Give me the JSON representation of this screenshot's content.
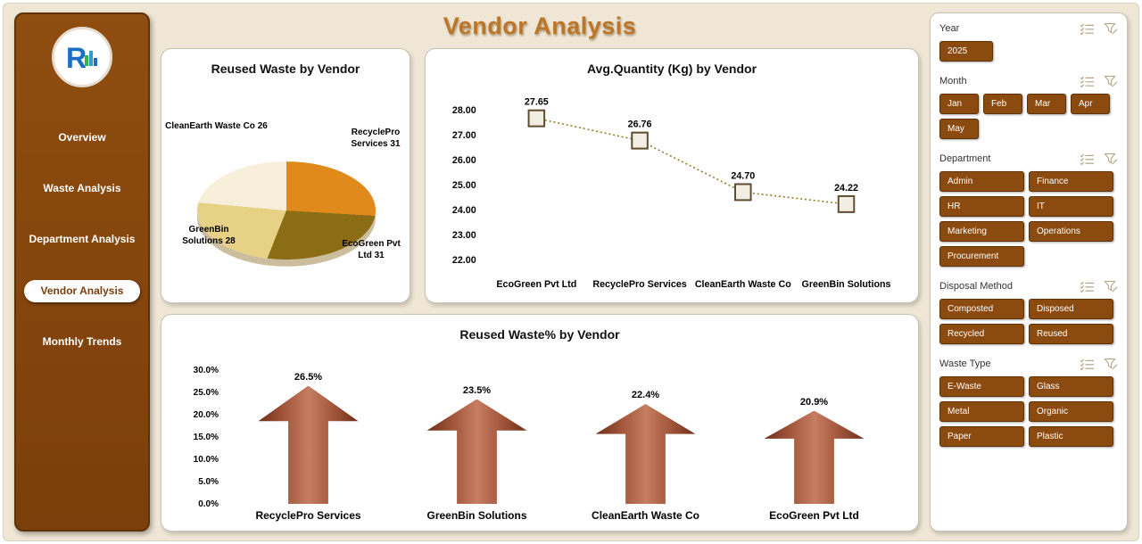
{
  "title": "Vendor Analysis",
  "sidebar": {
    "items": [
      {
        "label": "Overview",
        "active": false
      },
      {
        "label": "Waste Analysis",
        "active": false
      },
      {
        "label": "Department Analysis",
        "active": false
      },
      {
        "label": "Vendor Analysis",
        "active": true
      },
      {
        "label": "Monthly Trends",
        "active": false
      }
    ]
  },
  "colors": {
    "sidebar": "#8a4a10",
    "accent": "#8a4a10",
    "title": "#bd7628",
    "arrow": "#a0522d",
    "line": "#8d7b22",
    "pie_slices": [
      "#e08a1c",
      "#8a6d15",
      "#e6d184",
      "#f8efdb"
    ]
  },
  "chart_data": [
    {
      "type": "pie",
      "title": "Reused Waste by Vendor",
      "labels": [
        "RecyclePro Services",
        "EcoGreen Pvt Ltd",
        "GreenBin Solutions",
        "CleanEarth Waste Co"
      ],
      "values": [
        31,
        31,
        28,
        26
      ],
      "colors": [
        "#e08a1c",
        "#8a6d15",
        "#e6d184",
        "#f8efdb"
      ],
      "display_labels": [
        {
          "text": "CleanEarth Waste Co 26",
          "pos": "top-left"
        },
        {
          "text": "RecyclePro Services 31",
          "pos": "top-right"
        },
        {
          "text": "GreenBin Solutions 28",
          "pos": "bottom-left"
        },
        {
          "text": "EcoGreen Pvt Ltd 31",
          "pos": "bottom-right"
        }
      ]
    },
    {
      "type": "line",
      "title": "Avg.Quantity (Kg) by Vendor",
      "categories": [
        "EcoGreen Pvt Ltd",
        "RecyclePro Services",
        "CleanEarth Waste Co",
        "GreenBin Solutions"
      ],
      "values": [
        27.65,
        26.76,
        24.7,
        24.22
      ],
      "value_labels": [
        "27.65",
        "26.76",
        "24.70",
        "24.22"
      ],
      "ylim": [
        22,
        28
      ],
      "yticks": [
        28,
        27,
        26,
        25,
        24,
        23,
        22
      ],
      "line_style": "dotted",
      "legend": "none",
      "grid": false
    },
    {
      "type": "bar",
      "title": "Reused Waste% by Vendor",
      "categories": [
        "RecyclePro Services",
        "GreenBin Solutions",
        "CleanEarth Waste Co",
        "EcoGreen Pvt Ltd"
      ],
      "values": [
        26.5,
        23.5,
        22.4,
        20.9
      ],
      "value_labels": [
        "26.5%",
        "23.5%",
        "22.4%",
        "20.9%"
      ],
      "ylim": [
        0,
        30
      ],
      "yticks": [
        "30.0%",
        "25.0%",
        "20.0%",
        "15.0%",
        "10.0%",
        "5.0%",
        "0.0%"
      ],
      "bar_shape": "up-arrow"
    }
  ],
  "filters": {
    "slicers": [
      {
        "id": "year",
        "title": "Year",
        "layout": "year",
        "buttons": [
          "2025"
        ]
      },
      {
        "id": "month",
        "title": "Month",
        "layout": "small",
        "buttons": [
          "Jan",
          "Feb",
          "Mar",
          "Apr",
          "May"
        ]
      },
      {
        "id": "department",
        "title": "Department",
        "layout": "wide",
        "buttons": [
          "Admin",
          "Finance",
          "HR",
          "IT",
          "Marketing",
          "Operations",
          "Procurement"
        ]
      },
      {
        "id": "disposal-method",
        "title": "Disposal Method",
        "layout": "wide",
        "buttons": [
          "Composted",
          "Disposed",
          "Recycled",
          "Reused"
        ]
      },
      {
        "id": "waste-type",
        "title": "Waste Type",
        "layout": "wide",
        "buttons": [
          "E-Waste",
          "Glass",
          "Metal",
          "Organic",
          "Paper",
          "Plastic"
        ]
      }
    ]
  }
}
